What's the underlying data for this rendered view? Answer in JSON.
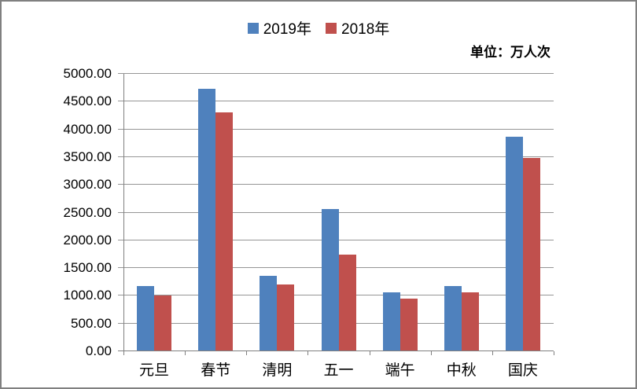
{
  "unit_label": "单位：万人次",
  "legend": {
    "items": [
      {
        "label": "2019年",
        "color": "#4F81BD"
      },
      {
        "label": "2018年",
        "color": "#C0504D"
      }
    ]
  },
  "chart_data": {
    "type": "bar",
    "categories": [
      "元旦",
      "春节",
      "清明",
      "五一",
      "端午",
      "中秋",
      "国庆"
    ],
    "series": [
      {
        "name": "2019年",
        "color": "#4F81BD",
        "values": [
          1160,
          4720,
          1345,
          2555,
          1050,
          1160,
          3850
        ]
      },
      {
        "name": "2018年",
        "color": "#C0504D",
        "values": [
          995,
          4285,
          1190,
          1725,
          935,
          1050,
          3465
        ]
      }
    ],
    "title": "",
    "xlabel": "",
    "ylabel": "",
    "unit": "万人次",
    "ylim": [
      0,
      5000
    ],
    "ytick_step": 500,
    "ytick_decimals": 2,
    "grid": true,
    "legend_position": "top-center"
  },
  "colors": {
    "grid": "#969696",
    "axis": "#808080",
    "frame_border": "#808080",
    "background": "#FFFFFF",
    "text": "#000000"
  }
}
